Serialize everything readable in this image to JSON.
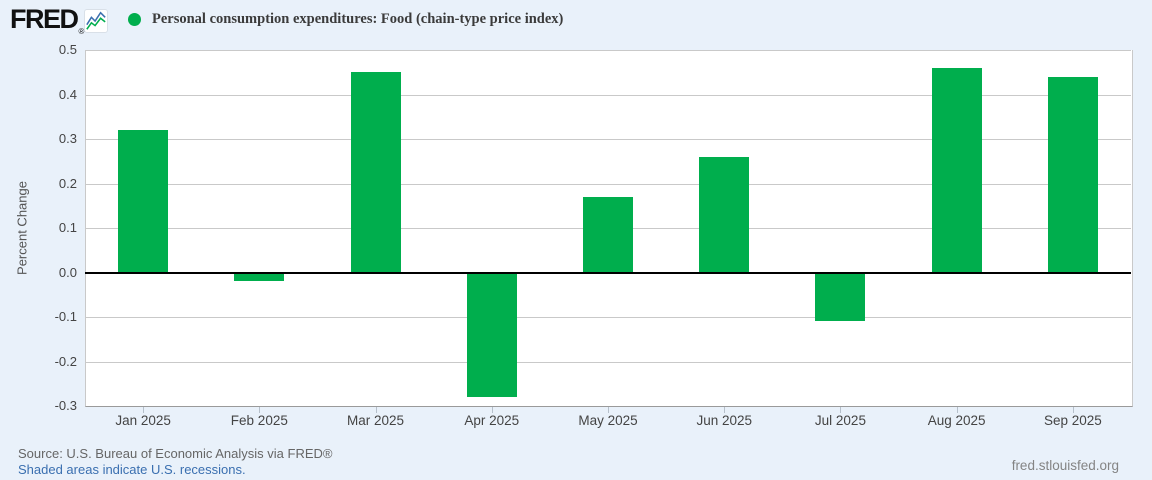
{
  "header": {
    "logo_text": "FRED",
    "registered_mark": "®",
    "title": "Personal consumption expenditures: Food (chain-type price index)"
  },
  "chart_data": {
    "type": "bar",
    "title": "Personal consumption expenditures: Food (chain-type price index)",
    "categories": [
      "Jan 2025",
      "Feb 2025",
      "Mar 2025",
      "Apr 2025",
      "May 2025",
      "Jun 2025",
      "Jul 2025",
      "Aug 2025",
      "Sep 2025"
    ],
    "values": [
      0.32,
      -0.02,
      0.45,
      -0.28,
      0.17,
      0.26,
      -0.11,
      0.46,
      0.44
    ],
    "xlabel": "",
    "ylabel": "Percent Change",
    "ylim": [
      -0.3,
      0.5
    ],
    "ytick_step": 0.1,
    "grid": true,
    "zero_line": true,
    "legend_position": "top",
    "bar_color": "#00ae4d"
  },
  "y_axis": {
    "label": "Percent Change"
  },
  "footer": {
    "source_line": "Source: U.S. Bureau of Economic Analysis via FRED®",
    "recession_note": "Shaded areas indicate U.S. recessions.",
    "site_link": "fred.stlouisfed.org"
  },
  "colors": {
    "background": "#e9f1fa",
    "plot_background": "#ffffff",
    "bar": "#00ae4d",
    "gridline": "#c9c9c9",
    "zero_line": "#000000",
    "axis_text": "#444444",
    "icon_line_blue": "#3b6fae",
    "icon_line_green": "#00ae4d",
    "source_text": "#666666",
    "recession_link": "#3a6fb0",
    "site_text": "#848484"
  }
}
